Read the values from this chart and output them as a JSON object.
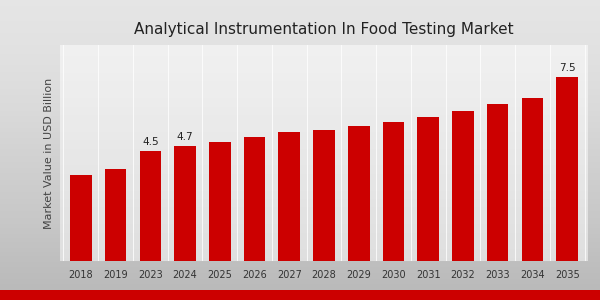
{
  "title": "Analytical Instrumentation In Food Testing Market",
  "ylabel": "Market Value in USD Billion",
  "categories": [
    "2018",
    "2019",
    "2023",
    "2024",
    "2025",
    "2026",
    "2027",
    "2028",
    "2029",
    "2030",
    "2031",
    "2032",
    "2033",
    "2034",
    "2035"
  ],
  "values": [
    3.5,
    3.75,
    4.5,
    4.7,
    4.85,
    5.05,
    5.25,
    5.35,
    5.5,
    5.65,
    5.85,
    6.1,
    6.4,
    6.65,
    7.5
  ],
  "bar_color": "#cc0000",
  "label_indices": [
    2,
    3,
    14
  ],
  "labels": [
    "4.5",
    "4.7",
    "7.5"
  ],
  "title_fontsize": 11,
  "ylabel_fontsize": 8,
  "tick_fontsize": 7,
  "ylim": [
    0,
    8.8
  ],
  "bg_top": "#f0f0f0",
  "bg_bottom": "#c8c8c8",
  "bottom_bar_color": "#cc0000"
}
